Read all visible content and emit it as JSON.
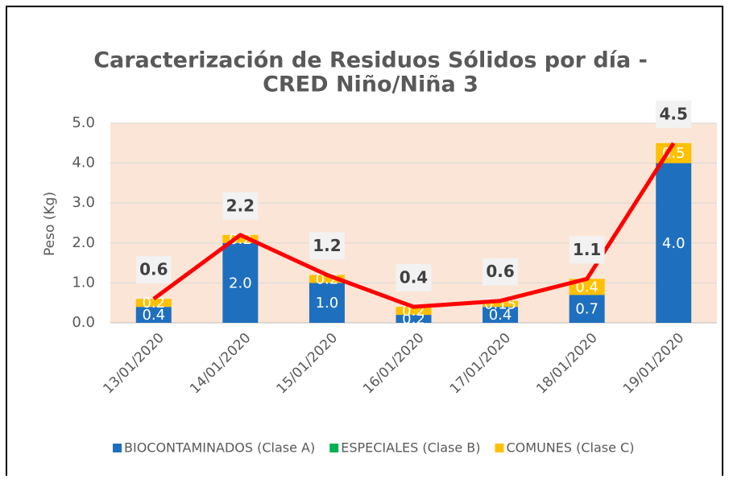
{
  "chart_data": {
    "type": "bar",
    "stacked": true,
    "title": [
      "Caracterización de Residuos Sólidos por día -",
      "CRED Niño/Niña 3"
    ],
    "y_label": "Peso (Kg)",
    "categories": [
      "13/01/2020",
      "14/01/2020",
      "15/01/2020",
      "16/01/2020",
      "17/01/2020",
      "18/01/2020",
      "19/01/2020"
    ],
    "series": [
      {
        "name": "BIOCONTAMINADOS (Clase A)",
        "color": "#1f6fbf",
        "values": [
          0.4,
          2.0,
          1.0,
          0.2,
          0.4,
          0.7,
          4.0
        ],
        "value_labels": [
          "0.4",
          "2.0",
          "1.0",
          "0.2",
          "0.4",
          "0.7",
          "4.0"
        ]
      },
      {
        "name": "ESPECIALES (Clase B)",
        "color": "#00b050",
        "values": [
          0,
          0,
          0,
          0,
          0,
          0,
          0
        ]
      },
      {
        "name": "COMUNES (Clase C)",
        "color": "#ffc000",
        "values": [
          0.2,
          0.2,
          0.2,
          0.2,
          0.15,
          0.4,
          0.5
        ]
      }
    ],
    "totals": {
      "color": "#ff0000",
      "values": [
        0.6,
        2.2,
        1.2,
        0.4,
        0.55,
        1.1,
        4.5
      ],
      "value_labels": [
        "0.6",
        "2.2",
        "1.2",
        "0.4",
        "0.6",
        "1.1",
        "4.5"
      ]
    },
    "ylim": [
      0,
      5
    ],
    "yticks": [
      {
        "value": 0,
        "label": "0.0"
      },
      {
        "value": 1,
        "label": "1.0"
      },
      {
        "value": 2,
        "label": "2.0"
      },
      {
        "value": 3,
        "label": "3.0"
      },
      {
        "value": 4,
        "label": "4.0"
      },
      {
        "value": 5,
        "label": "5.0"
      }
    ],
    "grid": true,
    "legend": "bottom"
  }
}
